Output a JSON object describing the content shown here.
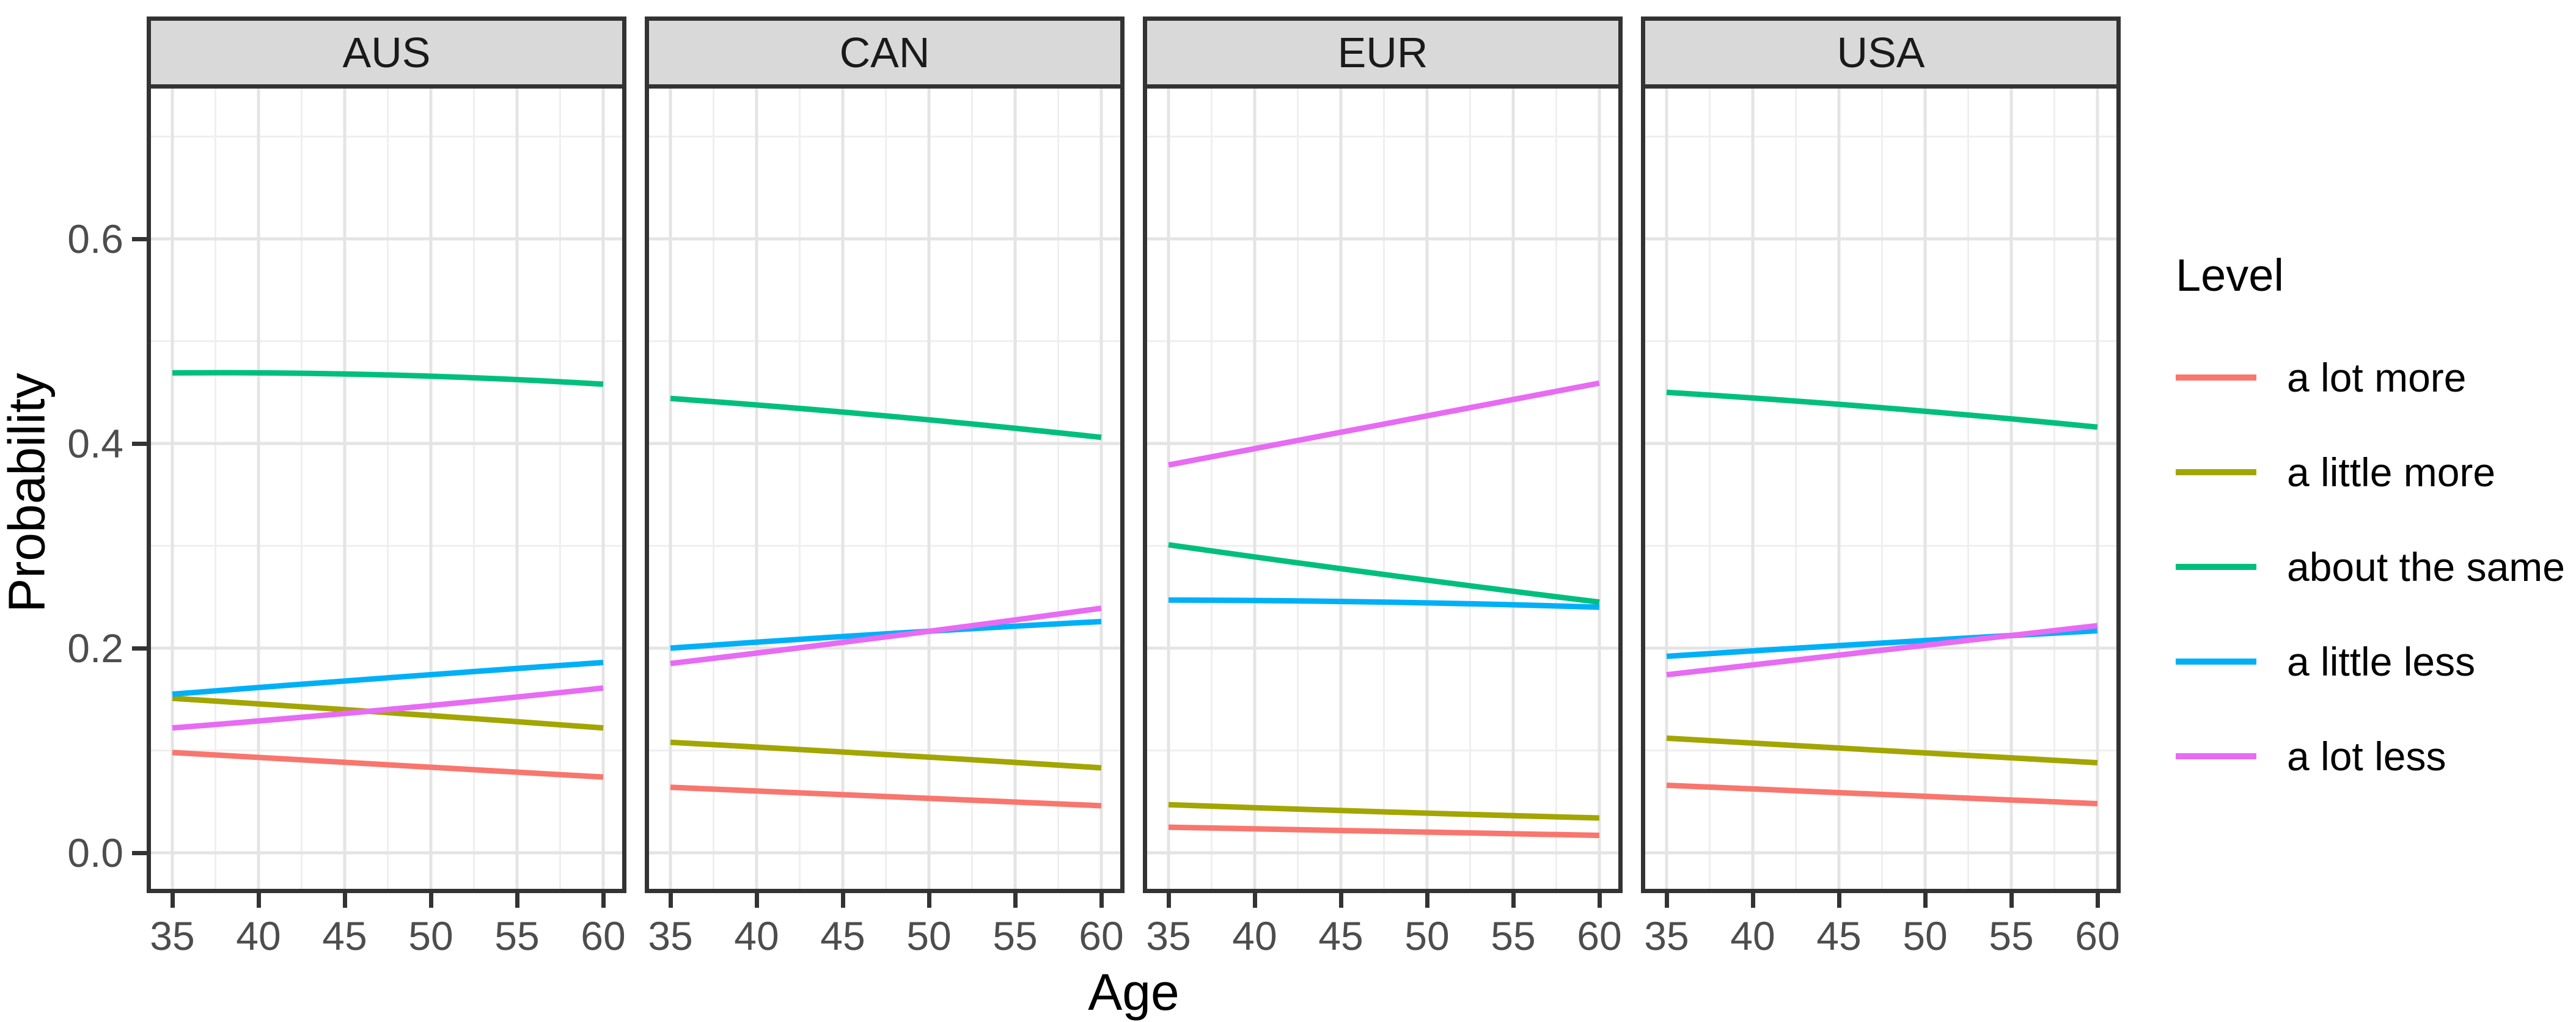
{
  "axes": {
    "x": {
      "title": "Age",
      "tick_labels": [
        "35",
        "40",
        "45",
        "50",
        "55",
        "60"
      ],
      "tick_values": [
        35,
        40,
        45,
        50,
        55,
        60
      ]
    },
    "y": {
      "title": "Probability",
      "tick_labels": [
        "0.0",
        "0.2",
        "0.4",
        "0.6"
      ],
      "tick_values": [
        0,
        0.2,
        0.4,
        0.6
      ]
    }
  },
  "legend": {
    "title": "Level",
    "items": [
      {
        "label": "a lot more",
        "color": "#F8766D"
      },
      {
        "label": "a little more",
        "color": "#A3A500"
      },
      {
        "label": "about the same",
        "color": "#00BF7D"
      },
      {
        "label": "a little less",
        "color": "#00B0F6"
      },
      {
        "label": "a lot less",
        "color": "#E76BF3"
      }
    ]
  },
  "chart_data": {
    "type": "line",
    "xlabel": "Age",
    "ylabel": "Probability",
    "x_range": [
      35,
      60
    ],
    "y_axis_ticks": [
      0.0,
      0.2,
      0.4,
      0.6
    ],
    "y_limits": [
      -0.035,
      0.747
    ],
    "grid": "on",
    "legend_position": "right",
    "legend_title": "Level",
    "levels": [
      {
        "name": "a lot more",
        "color": "#F8766D"
      },
      {
        "name": "a little more",
        "color": "#A3A500"
      },
      {
        "name": "about the same",
        "color": "#00BF7D"
      },
      {
        "name": "a little less",
        "color": "#00B0F6"
      },
      {
        "name": "a lot less",
        "color": "#E76BF3"
      }
    ],
    "x_points": [
      35,
      47.5,
      60
    ],
    "facets": [
      {
        "name": "AUS",
        "values": [
          [
            0.098,
            0.086,
            0.074
          ],
          [
            0.151,
            0.137,
            0.122
          ],
          [
            0.469,
            0.467,
            0.458
          ],
          [
            0.155,
            0.171,
            0.186
          ],
          [
            0.122,
            0.14,
            0.161
          ]
        ]
      },
      {
        "name": "CAN",
        "values": [
          [
            0.064,
            0.055,
            0.046
          ],
          [
            0.108,
            0.096,
            0.083
          ],
          [
            0.444,
            0.427,
            0.406
          ],
          [
            0.2,
            0.214,
            0.226
          ],
          [
            0.185,
            0.211,
            0.239
          ]
        ]
      },
      {
        "name": "EUR",
        "values": [
          [
            0.025,
            0.021,
            0.017
          ],
          [
            0.047,
            0.04,
            0.034
          ],
          [
            0.301,
            0.272,
            0.245
          ],
          [
            0.247,
            0.245,
            0.24
          ],
          [
            0.379,
            0.419,
            0.459
          ]
        ]
      },
      {
        "name": "USA",
        "values": [
          [
            0.066,
            0.057,
            0.048
          ],
          [
            0.112,
            0.1,
            0.088
          ],
          [
            0.45,
            0.435,
            0.416
          ],
          [
            0.192,
            0.205,
            0.217
          ],
          [
            0.174,
            0.198,
            0.222
          ]
        ]
      }
    ]
  }
}
